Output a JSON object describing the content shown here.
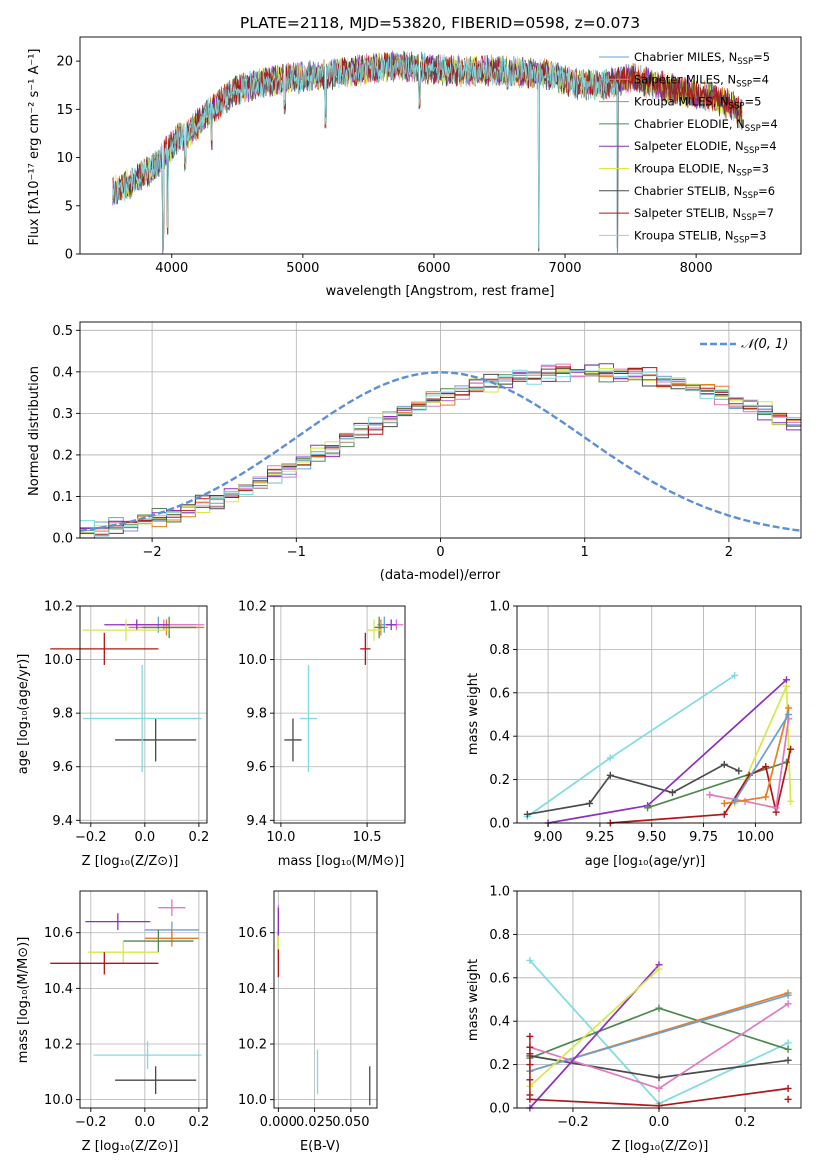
{
  "colors": {
    "chabrier_miles": "#6a9fd8",
    "salpeter_miles": "#e377c2",
    "kroupa_miles": "#e67e22",
    "chabrier_elodie": "#4e8a50",
    "salpeter_elodie": "#8e2fbf",
    "kroupa_elodie": "#d6e84a",
    "chabrier_stelib": "#4a4a4a",
    "salpeter_stelib": "#b01616",
    "kroupa_stelib": "#7fdbe0",
    "normal_curve": "#5b8fd6"
  },
  "chart_data": [
    {
      "id": "spectrum",
      "type": "line",
      "title": "PLATE=2118, MJD=53820, FIBERID=0598, z=0.073",
      "xlabel": "wavelength [Angstrom, rest frame]",
      "ylabel": "Flux [fλ10⁻¹⁷ erg cm⁻² s⁻¹ A⁻¹]",
      "xlim": [
        3300,
        8800
      ],
      "ylim": [
        0,
        22.5
      ],
      "xticks": [
        "4000",
        "5000",
        "6000",
        "7000",
        "8000"
      ],
      "yticks": [
        "0",
        "5",
        "10",
        "15",
        "20"
      ],
      "grid": false,
      "legend_position": "upper right",
      "continuum": {
        "x": [
          3550,
          3700,
          3850,
          3950,
          4050,
          4150,
          4300,
          4500,
          4700,
          4900,
          5100,
          5300,
          5500,
          5700,
          5900,
          6100,
          6300,
          6500,
          6700,
          6900,
          7100,
          7300,
          7500,
          7700,
          7900,
          8100,
          8300,
          8350
        ],
        "y": [
          6.5,
          7.5,
          8.8,
          10.5,
          12.0,
          12.8,
          15.0,
          17.0,
          17.8,
          18.2,
          18.5,
          18.8,
          19.2,
          19.5,
          19.3,
          19.0,
          19.0,
          19.0,
          18.8,
          18.5,
          17.6,
          17.6,
          18.3,
          17.5,
          16.8,
          16.3,
          15.2,
          14.5
        ]
      },
      "absorption_features": [
        {
          "x": 3933,
          "y": 0.0
        },
        {
          "x": 3968,
          "y": 2.0
        },
        {
          "x": 4102,
          "y": 8.5
        },
        {
          "x": 4304,
          "y": 10.5
        },
        {
          "x": 4861,
          "y": 14.5
        },
        {
          "x": 5175,
          "y": 13.0
        },
        {
          "x": 5890,
          "y": 15.0
        },
        {
          "x": 6563,
          "y": 17.0
        },
        {
          "x": 6800,
          "y": 0.0
        },
        {
          "x": 7400,
          "y": 0.0
        }
      ],
      "series": [
        {
          "name": "Chabrier MILES, N_SSP=5",
          "label_main": "Chabrier MILES, N",
          "label_sub": "SSP",
          "label_tail": "=5",
          "color_key": "chabrier_miles"
        },
        {
          "name": "Salpeter MILES, N_SSP=4",
          "label_main": "Salpeter MILES, N",
          "label_sub": "SSP",
          "label_tail": "=4",
          "color_key": "salpeter_miles"
        },
        {
          "name": "Kroupa MILES, N_SSP=5",
          "label_main": "Kroupa MILES, N",
          "label_sub": "SSP",
          "label_tail": "=5",
          "color_key": "kroupa_miles"
        },
        {
          "name": "Chabrier ELODIE, N_SSP=4",
          "label_main": "Chabrier ELODIE, N",
          "label_sub": "SSP",
          "label_tail": "=4",
          "color_key": "chabrier_elodie"
        },
        {
          "name": "Salpeter ELODIE, N_SSP=4",
          "label_main": "Salpeter ELODIE, N",
          "label_sub": "SSP",
          "label_tail": "=4",
          "color_key": "salpeter_elodie"
        },
        {
          "name": "Kroupa ELODIE, N_SSP=3",
          "label_main": "Kroupa ELODIE, N",
          "label_sub": "SSP",
          "label_tail": "=3",
          "color_key": "kroupa_elodie"
        },
        {
          "name": "Chabrier STELIB, N_SSP=6",
          "label_main": "Chabrier STELIB, N",
          "label_sub": "SSP",
          "label_tail": "=6",
          "color_key": "chabrier_stelib"
        },
        {
          "name": "Salpeter STELIB, N_SSP=7",
          "label_main": "Salpeter STELIB, N",
          "label_sub": "SSP",
          "label_tail": "=7",
          "color_key": "salpeter_stelib"
        },
        {
          "name": "Kroupa STELIB, N_SSP=3",
          "label_main": "Kroupa STELIB, N",
          "label_sub": "SSP",
          "label_tail": "=3",
          "color_key": "kroupa_stelib"
        }
      ]
    },
    {
      "id": "residuals",
      "type": "step",
      "xlabel": "(data-model)/error",
      "ylabel": "Normed distribution",
      "xlim": [
        -2.5,
        2.5
      ],
      "ylim": [
        0,
        0.52
      ],
      "xticks": [
        "−2",
        "−1",
        "0",
        "1",
        "2"
      ],
      "yticks": [
        "0.0",
        "0.1",
        "0.2",
        "0.3",
        "0.4",
        "0.5"
      ],
      "grid": true,
      "legend_position": "upper right",
      "legend_label": "𝒩(0, 1)",
      "bin_width": 0.1,
      "bin_start": -2.5,
      "reference_density": [
        0.018,
        0.022,
        0.026,
        0.032,
        0.04,
        0.047,
        0.056,
        0.066,
        0.079,
        0.09,
        0.104,
        0.12,
        0.133,
        0.15,
        0.166,
        0.183,
        0.2,
        0.217,
        0.238,
        0.254,
        0.272,
        0.287,
        0.302,
        0.317,
        0.33,
        0.342,
        0.353,
        0.363,
        0.374,
        0.381,
        0.386,
        0.392,
        0.396,
        0.399,
        0.399,
        0.399,
        0.398,
        0.396,
        0.392,
        0.387,
        0.38,
        0.372,
        0.363,
        0.353,
        0.342,
        0.33,
        0.317,
        0.304,
        0.29,
        0.275,
        0.259
      ],
      "variation": [
        0.0,
        0.006,
        -0.008,
        0.011,
        0.004,
        -0.012,
        0.015,
        -0.005,
        0.009,
        -0.014
      ]
    },
    {
      "id": "age_vs_Z",
      "type": "errorbar",
      "xlabel": "Z [log₁₀(Z/Z⊙)]",
      "ylabel": "age  [log₁₀(age/yr)]",
      "xlim": [
        -0.24,
        0.23
      ],
      "ylim": [
        9.39,
        10.2
      ],
      "xticks": [
        "−0.2",
        "0.0",
        "0.2"
      ],
      "yticks": [
        "9.4",
        "9.6",
        "9.8",
        "10.0",
        "10.2"
      ],
      "grid": true,
      "points": [
        {
          "color_key": "chabrier_miles",
          "x": 0.05,
          "xerr": 0.14,
          "y": 10.13,
          "yerr": 0.03
        },
        {
          "color_key": "salpeter_miles",
          "x": 0.07,
          "xerr": 0.15,
          "y": 10.13,
          "yerr": 0.02
        },
        {
          "color_key": "kroupa_miles",
          "x": 0.08,
          "xerr": 0.14,
          "y": 10.12,
          "yerr": 0.03
        },
        {
          "color_key": "chabrier_elodie",
          "x": 0.09,
          "xerr": 0.1,
          "y": 10.12,
          "yerr": 0.04
        },
        {
          "color_key": "salpeter_elodie",
          "x": -0.03,
          "xerr": 0.12,
          "y": 10.13,
          "yerr": 0.02
        },
        {
          "color_key": "kroupa_elodie",
          "x": -0.07,
          "xerr": 0.16,
          "y": 10.11,
          "yerr": 0.04
        },
        {
          "color_key": "chabrier_stelib",
          "x": 0.04,
          "xerr": 0.15,
          "y": 9.7,
          "yerr": 0.08
        },
        {
          "color_key": "salpeter_stelib",
          "x": -0.15,
          "xerr": 0.2,
          "y": 10.04,
          "yerr": 0.06
        },
        {
          "color_key": "kroupa_stelib",
          "x": -0.01,
          "xerr": 0.22,
          "y": 9.78,
          "yerr": 0.2
        }
      ]
    },
    {
      "id": "age_vs_mass",
      "type": "errorbar",
      "xlabel": "mass [log₁₀(M/M⊙)]",
      "ylabel": "",
      "xlim": [
        9.96,
        10.72
      ],
      "ylim": [
        9.39,
        10.2
      ],
      "xticks": [
        "10.0",
        "10.5"
      ],
      "yticks": [
        "9.4",
        "9.6",
        "9.8",
        "10.0",
        "10.2"
      ],
      "grid": true,
      "points": [
        {
          "color_key": "chabrier_miles",
          "x": 10.6,
          "xerr": 0.04,
          "y": 10.13,
          "yerr": 0.03
        },
        {
          "color_key": "salpeter_miles",
          "x": 10.67,
          "xerr": 0.04,
          "y": 10.13,
          "yerr": 0.02
        },
        {
          "color_key": "kroupa_miles",
          "x": 10.58,
          "xerr": 0.04,
          "y": 10.12,
          "yerr": 0.03
        },
        {
          "color_key": "chabrier_elodie",
          "x": 10.57,
          "xerr": 0.03,
          "y": 10.12,
          "yerr": 0.04
        },
        {
          "color_key": "salpeter_elodie",
          "x": 10.64,
          "xerr": 0.03,
          "y": 10.13,
          "yerr": 0.02
        },
        {
          "color_key": "kroupa_elodie",
          "x": 10.54,
          "xerr": 0.04,
          "y": 10.11,
          "yerr": 0.04
        },
        {
          "color_key": "chabrier_stelib",
          "x": 10.07,
          "xerr": 0.05,
          "y": 9.7,
          "yerr": 0.08
        },
        {
          "color_key": "salpeter_stelib",
          "x": 10.49,
          "xerr": 0.03,
          "y": 10.04,
          "yerr": 0.06
        },
        {
          "color_key": "kroupa_stelib",
          "x": 10.16,
          "xerr": 0.05,
          "y": 9.78,
          "yerr": 0.2
        }
      ]
    },
    {
      "id": "mass_weight_vs_age",
      "type": "line",
      "xlabel": "age  [log₁₀(age/yr)]",
      "ylabel": "mass weight",
      "xlim": [
        8.85,
        10.22
      ],
      "ylim": [
        0,
        1.0
      ],
      "xticks": [
        "9.00",
        "9.25",
        "9.50",
        "9.75",
        "10.00"
      ],
      "yticks": [
        "0.0",
        "0.2",
        "0.4",
        "0.6",
        "0.8",
        "1.0"
      ],
      "grid": true,
      "series": [
        {
          "color_key": "kroupa_stelib",
          "x": [
            8.9,
            9.3,
            9.9
          ],
          "y": [
            0.03,
            0.3,
            0.68
          ]
        },
        {
          "color_key": "chabrier_stelib",
          "x": [
            8.9,
            9.2,
            9.3,
            9.6,
            9.85,
            9.92
          ],
          "y": [
            0.04,
            0.09,
            0.22,
            0.14,
            0.27,
            0.24
          ]
        },
        {
          "color_key": "salpeter_elodie",
          "x": [
            9.0,
            9.48,
            10.15
          ],
          "y": [
            0.0,
            0.08,
            0.66
          ]
        },
        {
          "color_key": "kroupa_elodie",
          "x": [
            9.9,
            10.15,
            10.17
          ],
          "y": [
            0.09,
            0.63,
            0.1
          ]
        },
        {
          "color_key": "chabrier_elodie",
          "x": [
            9.48,
            10.15
          ],
          "y": [
            0.07,
            0.28
          ]
        },
        {
          "color_key": "salpeter_stelib",
          "x": [
            9.3,
            9.85,
            9.97,
            10.05,
            10.1,
            10.17
          ],
          "y": [
            0.0,
            0.04,
            0.22,
            0.26,
            0.05,
            0.34
          ]
        },
        {
          "color_key": "salpeter_miles",
          "x": [
            9.78,
            9.95,
            10.1,
            10.16
          ],
          "y": [
            0.13,
            0.1,
            0.07,
            0.48
          ]
        },
        {
          "color_key": "kroupa_miles",
          "x": [
            9.85,
            10.05,
            10.16
          ],
          "y": [
            0.09,
            0.12,
            0.53
          ]
        },
        {
          "color_key": "chabrier_miles",
          "x": [
            9.9,
            10.16
          ],
          "y": [
            0.1,
            0.5
          ]
        }
      ]
    },
    {
      "id": "mass_vs_Z",
      "type": "errorbar",
      "xlabel": "Z [log₁₀(Z/Z⊙)]",
      "ylabel": "mass [log₁₀(M/M⊙)]",
      "xlim": [
        -0.24,
        0.23
      ],
      "ylim": [
        9.97,
        10.75
      ],
      "xticks": [
        "−0.2",
        "0.0",
        "0.2"
      ],
      "yticks": [
        "10.0",
        "10.2",
        "10.4",
        "10.6"
      ],
      "grid": true,
      "points": [
        {
          "color_key": "chabrier_miles",
          "x": 0.1,
          "xerr": 0.1,
          "y": 10.61,
          "yerr": 0.03
        },
        {
          "color_key": "salpeter_miles",
          "x": 0.1,
          "xerr": 0.05,
          "y": 10.69,
          "yerr": 0.03
        },
        {
          "color_key": "kroupa_miles",
          "x": 0.1,
          "xerr": 0.1,
          "y": 10.58,
          "yerr": 0.03
        },
        {
          "color_key": "chabrier_elodie",
          "x": 0.05,
          "xerr": 0.13,
          "y": 10.57,
          "yerr": 0.04
        },
        {
          "color_key": "salpeter_elodie",
          "x": -0.1,
          "xerr": 0.12,
          "y": 10.64,
          "yerr": 0.03
        },
        {
          "color_key": "kroupa_elodie",
          "x": -0.08,
          "xerr": 0.13,
          "y": 10.53,
          "yerr": 0.04
        },
        {
          "color_key": "chabrier_stelib",
          "x": 0.04,
          "xerr": 0.15,
          "y": 10.07,
          "yerr": 0.05
        },
        {
          "color_key": "salpeter_stelib",
          "x": -0.15,
          "xerr": 0.2,
          "y": 10.49,
          "yerr": 0.04
        },
        {
          "color_key": "kroupa_stelib",
          "x": 0.01,
          "xerr": 0.2,
          "y": 10.16,
          "yerr": 0.05
        }
      ]
    },
    {
      "id": "mass_vs_ebv",
      "type": "errorbar",
      "xlabel": "E(B-V)",
      "ylabel": "",
      "xlim": [
        -0.003,
        0.068
      ],
      "ylim": [
        9.97,
        10.75
      ],
      "xticks": [
        "0.000",
        "0.025",
        "0.050"
      ],
      "yticks": [
        "10.0",
        "10.2",
        "10.4",
        "10.6"
      ],
      "grid": true,
      "points": [
        {
          "color_key": "chabrier_miles",
          "x": 0.0,
          "xerr": 0.0,
          "y": 10.6,
          "yerr": 0.04
        },
        {
          "color_key": "salpeter_miles",
          "x": 0.0,
          "xerr": 0.0,
          "y": 10.65,
          "yerr": 0.05
        },
        {
          "color_key": "kroupa_miles",
          "x": 0.0,
          "xerr": 0.0,
          "y": 10.57,
          "yerr": 0.04
        },
        {
          "color_key": "chabrier_elodie",
          "x": 0.0,
          "xerr": 0.0,
          "y": 10.55,
          "yerr": 0.05
        },
        {
          "color_key": "salpeter_elodie",
          "x": 0.0,
          "xerr": 0.0,
          "y": 10.64,
          "yerr": 0.05
        },
        {
          "color_key": "kroupa_elodie",
          "x": 0.0,
          "xerr": 0.0,
          "y": 10.54,
          "yerr": 0.05
        },
        {
          "color_key": "chabrier_stelib",
          "x": 0.063,
          "xerr": 0.0,
          "y": 10.05,
          "yerr": 0.07
        },
        {
          "color_key": "salpeter_stelib",
          "x": 0.0,
          "xerr": 0.0,
          "y": 10.49,
          "yerr": 0.05
        },
        {
          "color_key": "kroupa_stelib",
          "x": 0.027,
          "xerr": 0.0,
          "y": 10.1,
          "yerr": 0.08
        }
      ]
    },
    {
      "id": "mass_weight_vs_Z",
      "type": "line",
      "xlabel": "Z [log₁₀(Z/Z⊙)]",
      "ylabel": "mass weight",
      "xlim": [
        -0.33,
        0.33
      ],
      "ylim": [
        0,
        1.0
      ],
      "xticks": [
        "−0.2",
        "0.0",
        "0.2"
      ],
      "yticks": [
        "0.0",
        "0.2",
        "0.4",
        "0.6",
        "0.8",
        "1.0"
      ],
      "grid": true,
      "series": [
        {
          "color_key": "kroupa_stelib",
          "x": [
            -0.3,
            0.0,
            0.3
          ],
          "y": [
            0.68,
            0.02,
            0.3
          ]
        },
        {
          "color_key": "chabrier_elodie",
          "x": [
            -0.3,
            0.0,
            0.3
          ],
          "y": [
            0.23,
            0.46,
            0.27
          ]
        },
        {
          "color_key": "chabrier_stelib",
          "x": [
            -0.3,
            0.0,
            0.3
          ],
          "y": [
            0.24,
            0.14,
            0.22
          ]
        },
        {
          "color_key": "salpeter_miles",
          "x": [
            -0.3,
            0.0,
            0.3
          ],
          "y": [
            0.28,
            0.09,
            0.48
          ]
        },
        {
          "color_key": "kroupa_miles",
          "x": [
            -0.3,
            0.3
          ],
          "y": [
            0.17,
            0.53
          ]
        },
        {
          "color_key": "chabrier_miles",
          "x": [
            -0.3,
            0.3
          ],
          "y": [
            0.17,
            0.52
          ]
        },
        {
          "color_key": "salpeter_elodie",
          "x": [
            -0.3,
            0.0
          ],
          "y": [
            0.0,
            0.66
          ]
        },
        {
          "color_key": "kroupa_elodie",
          "x": [
            -0.3,
            0.0
          ],
          "y": [
            0.1,
            0.64
          ]
        },
        {
          "color_key": "salpeter_stelib",
          "x": [
            -0.3,
            0.0,
            0.3
          ],
          "y": [
            0.04,
            0.01,
            0.09
          ]
        }
      ],
      "extra_markers": [
        {
          "color_key": "salpeter_stelib",
          "x": -0.3,
          "y": [
            0.33,
            0.28,
            0.25,
            0.2,
            0.13,
            0.06
          ]
        },
        {
          "color_key": "salpeter_stelib",
          "x": 0.3,
          "y": [
            0.04
          ]
        }
      ]
    }
  ]
}
